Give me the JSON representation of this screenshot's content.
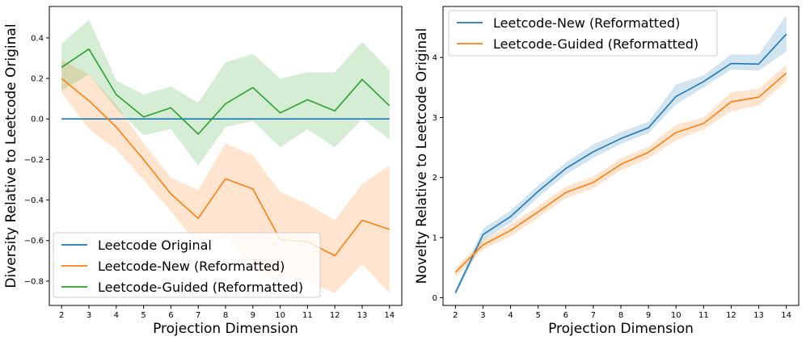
{
  "chart_data": [
    {
      "type": "line",
      "title": "",
      "xlabel": "Projection Dimension",
      "ylabel": "Diversity Relative to Leetcode Original",
      "x": [
        2,
        3,
        4,
        5,
        6,
        7,
        8,
        9,
        10,
        11,
        12,
        13,
        14
      ],
      "xlim": [
        1.55,
        14.45
      ],
      "ylim": [
        -0.92,
        0.555
      ],
      "yticks": [
        -0.8,
        -0.6,
        -0.4,
        -0.2,
        0.0,
        0.2,
        0.4
      ],
      "ytick_labels": [
        "−0.8",
        "−0.6",
        "−0.4",
        "−0.2",
        "0.0",
        "0.2",
        "0.4"
      ],
      "legend_position": "lower-left",
      "series": [
        {
          "name": "Leetcode Original",
          "color": "#1f77b4",
          "values": [
            0,
            0,
            0,
            0,
            0,
            0,
            0,
            0,
            0,
            0,
            0,
            0,
            0
          ],
          "lower": [
            0,
            0,
            0,
            0,
            0,
            0,
            0,
            0,
            0,
            0,
            0,
            0,
            0
          ],
          "upper": [
            0,
            0,
            0,
            0,
            0,
            0,
            0,
            0,
            0,
            0,
            0,
            0,
            0
          ]
        },
        {
          "name": "Leetcode-New (Reformatted)",
          "color": "#ff7f0e",
          "values": [
            0.2,
            0.09,
            -0.04,
            -0.2,
            -0.37,
            -0.49,
            -0.295,
            -0.345,
            -0.595,
            -0.605,
            -0.675,
            -0.5,
            -0.545
          ],
          "lower": [
            0.13,
            -0.05,
            -0.15,
            -0.3,
            -0.455,
            -0.625,
            -0.58,
            -0.74,
            -0.8,
            -0.8,
            -0.86,
            -0.715,
            -0.86
          ],
          "upper": [
            0.29,
            0.22,
            0.07,
            -0.12,
            -0.29,
            -0.35,
            -0.12,
            -0.18,
            -0.36,
            -0.42,
            -0.5,
            -0.32,
            -0.23
          ]
        },
        {
          "name": "Leetcode-Guided (Reformatted)",
          "color": "#2ca02c",
          "values": [
            0.255,
            0.345,
            0.12,
            0.01,
            0.055,
            -0.075,
            0.075,
            0.155,
            0.03,
            0.095,
            0.04,
            0.195,
            0.065
          ],
          "lower": [
            0.14,
            0.22,
            0.05,
            -0.08,
            -0.05,
            -0.23,
            -0.04,
            -0.01,
            -0.14,
            -0.05,
            -0.14,
            0.0,
            -0.1
          ],
          "upper": [
            0.37,
            0.49,
            0.19,
            0.12,
            0.16,
            0.08,
            0.28,
            0.32,
            0.2,
            0.23,
            0.23,
            0.38,
            0.24
          ]
        }
      ]
    },
    {
      "type": "line",
      "title": "",
      "xlabel": "Projection Dimension",
      "ylabel": "Novelty Relative to Leetcode Original",
      "x": [
        2,
        3,
        4,
        5,
        6,
        7,
        8,
        9,
        10,
        11,
        12,
        13,
        14
      ],
      "xlim": [
        1.55,
        14.45
      ],
      "ylim": [
        -0.13,
        4.85
      ],
      "yticks": [
        0,
        1,
        2,
        3,
        4
      ],
      "ytick_labels": [
        "0",
        "1",
        "2",
        "3",
        "4"
      ],
      "legend_position": "upper-left",
      "series": [
        {
          "name": "Leetcode-New (Reformatted)",
          "color": "#1f77b4",
          "values": [
            0.08,
            1.05,
            1.35,
            1.77,
            2.15,
            2.43,
            2.65,
            2.83,
            3.35,
            3.6,
            3.9,
            3.89,
            4.39
          ],
          "lower": [
            0.03,
            0.95,
            1.25,
            1.67,
            2.05,
            2.33,
            2.56,
            2.74,
            3.22,
            3.5,
            3.8,
            3.78,
            4.1
          ],
          "upper": [
            0.13,
            1.15,
            1.45,
            1.87,
            2.25,
            2.55,
            2.76,
            2.93,
            3.55,
            3.7,
            4.05,
            4.05,
            4.7
          ]
        },
        {
          "name": "Leetcode-Guided (Reformatted)",
          "color": "#ff7f0e",
          "values": [
            0.42,
            0.88,
            1.12,
            1.43,
            1.75,
            1.92,
            2.22,
            2.42,
            2.75,
            2.9,
            3.26,
            3.34,
            3.74
          ],
          "lower": [
            0.34,
            0.8,
            1.02,
            1.33,
            1.65,
            1.82,
            2.12,
            2.32,
            2.62,
            2.8,
            3.1,
            3.2,
            3.6
          ],
          "upper": [
            0.5,
            0.96,
            1.22,
            1.53,
            1.85,
            2.02,
            2.32,
            2.52,
            2.88,
            3.0,
            3.42,
            3.48,
            3.88
          ]
        }
      ]
    }
  ]
}
